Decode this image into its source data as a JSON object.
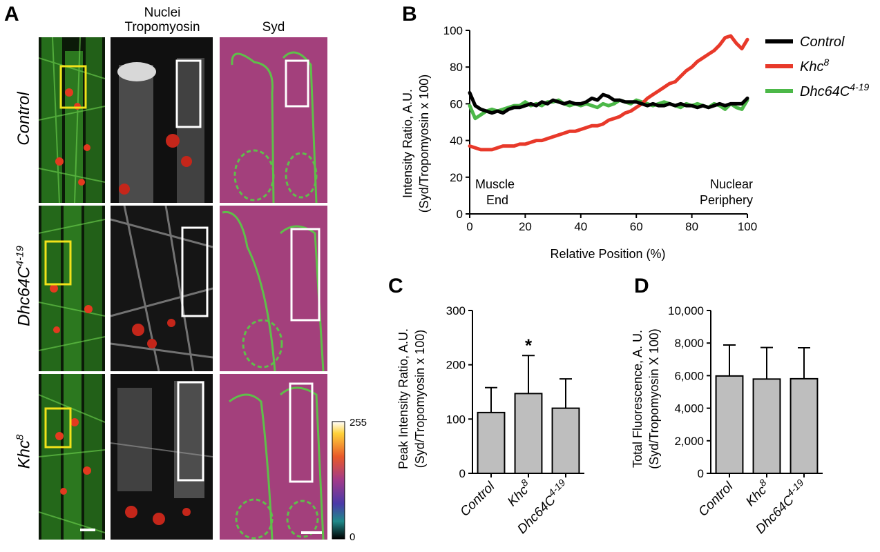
{
  "panel_letters": {
    "a": "A",
    "b": "B",
    "c": "C",
    "d": "D"
  },
  "panel_a": {
    "col_labels": {
      "nuclei": "Nuclei",
      "tropomyosin": "Tropomyosin",
      "syd": "Syd"
    },
    "row_labels": {
      "control": "Control",
      "dhc_base": "Dhc64C",
      "dhc_sup": "4-19",
      "khc_base": "Khc",
      "khc_sup": "8"
    },
    "colorbar": {
      "max": "255",
      "min": "0"
    }
  },
  "chart_data": [
    {
      "type": "line",
      "panel": "B",
      "xlabel": "Relative Position (%)",
      "ylabel_line1": "Intensity Ratio, A.U.",
      "ylabel_line2": "(Syd/Tropomyosin x 100)",
      "xlim": [
        0,
        100
      ],
      "ylim": [
        0,
        100
      ],
      "xticks": [
        "0",
        "20",
        "40",
        "60",
        "80",
        "100"
      ],
      "yticks": [
        "0",
        "20",
        "40",
        "60",
        "80",
        "100"
      ],
      "annotations": {
        "left1": "Muscle",
        "left2": "End",
        "right1": "Nuclear",
        "right2": "Periphery"
      },
      "legend": {
        "placement": "right"
      },
      "series": [
        {
          "name": "Control",
          "name_base": "Control",
          "name_sup": "",
          "color": "#000000",
          "x": [
            0,
            2,
            4,
            6,
            8,
            10,
            12,
            14,
            16,
            18,
            20,
            22,
            24,
            26,
            28,
            30,
            32,
            34,
            36,
            38,
            40,
            42,
            44,
            46,
            48,
            50,
            52,
            54,
            56,
            58,
            60,
            62,
            64,
            66,
            68,
            70,
            72,
            74,
            76,
            78,
            80,
            82,
            84,
            86,
            88,
            90,
            92,
            94,
            96,
            98,
            100
          ],
          "y": [
            66,
            59,
            57,
            56,
            55,
            56,
            55,
            57,
            58,
            58,
            59,
            60,
            59,
            61,
            60,
            62,
            61,
            60,
            61,
            60,
            60,
            61,
            63,
            62,
            65,
            64,
            62,
            62,
            61,
            61,
            61,
            60,
            59,
            60,
            59,
            59,
            60,
            59,
            60,
            59,
            59,
            58,
            59,
            58,
            59,
            60,
            59,
            60,
            60,
            60,
            63
          ]
        },
        {
          "name": "Khc8",
          "name_base": "Khc",
          "name_sup": "8",
          "color": "#e8392a",
          "x": [
            0,
            2,
            4,
            6,
            8,
            10,
            12,
            14,
            16,
            18,
            20,
            22,
            24,
            26,
            28,
            30,
            32,
            34,
            36,
            38,
            40,
            42,
            44,
            46,
            48,
            50,
            52,
            54,
            56,
            58,
            60,
            62,
            64,
            66,
            68,
            70,
            72,
            74,
            76,
            78,
            80,
            82,
            84,
            86,
            88,
            90,
            92,
            94,
            96,
            98,
            100
          ],
          "y": [
            37,
            36,
            35,
            35,
            35,
            36,
            37,
            37,
            37,
            38,
            38,
            39,
            40,
            40,
            41,
            42,
            43,
            44,
            45,
            45,
            46,
            47,
            48,
            48,
            49,
            51,
            52,
            53,
            55,
            56,
            58,
            60,
            63,
            65,
            67,
            69,
            71,
            72,
            75,
            78,
            80,
            83,
            85,
            87,
            89,
            92,
            96,
            97,
            93,
            90,
            95
          ]
        },
        {
          "name": "Dhc64C4-19",
          "name_base": "Dhc64C",
          "name_sup": "4-19",
          "color": "#4cb848",
          "x": [
            0,
            2,
            4,
            6,
            8,
            10,
            12,
            14,
            16,
            18,
            20,
            22,
            24,
            26,
            28,
            30,
            32,
            34,
            36,
            38,
            40,
            42,
            44,
            46,
            48,
            50,
            52,
            54,
            56,
            58,
            60,
            62,
            64,
            66,
            68,
            70,
            72,
            74,
            76,
            78,
            80,
            82,
            84,
            86,
            88,
            90,
            92,
            94,
            96,
            98,
            100
          ],
          "y": [
            59,
            52,
            54,
            56,
            57,
            56,
            57,
            58,
            59,
            59,
            61,
            59,
            60,
            59,
            61,
            61,
            62,
            60,
            59,
            60,
            59,
            60,
            59,
            58,
            60,
            59,
            60,
            62,
            61,
            60,
            62,
            61,
            60,
            59,
            60,
            61,
            60,
            59,
            58,
            60,
            59,
            60,
            59,
            58,
            60,
            59,
            57,
            60,
            58,
            57,
            62
          ]
        }
      ]
    },
    {
      "type": "bar",
      "panel": "C",
      "ylabel_line1": "Peak Intensity Ratio, A.U.",
      "ylabel_line2": "(Syd/Tropomyosin x 100)",
      "ylim": [
        0,
        300
      ],
      "yticks": [
        "0",
        "100",
        "200",
        "300"
      ],
      "categories": [
        {
          "base": "Control",
          "sup": ""
        },
        {
          "base": "Khc",
          "sup": "8"
        },
        {
          "base": "Dhc64C",
          "sup": "4-19"
        }
      ],
      "values": [
        112,
        147,
        120
      ],
      "errors": [
        46,
        70,
        54
      ],
      "significance": [
        "",
        "*",
        ""
      ],
      "bar_color": "#bebebe"
    },
    {
      "type": "bar",
      "panel": "D",
      "ylabel_line1": "Total Fluorescence, A. U.",
      "ylabel_line2": "(Syd/Tropomyosin X 100)",
      "ylim": [
        0,
        10000
      ],
      "yticks": [
        "0",
        "2,000",
        "4,000",
        "6,000",
        "8,000",
        "10,000"
      ],
      "categories": [
        {
          "base": "Control",
          "sup": ""
        },
        {
          "base": "Khc",
          "sup": "8"
        },
        {
          "base": "Dhc64C",
          "sup": "4-19"
        }
      ],
      "values": [
        5980,
        5790,
        5810
      ],
      "errors": [
        1900,
        1940,
        1900
      ],
      "significance": [
        "",
        "",
        ""
      ],
      "bar_color": "#bebebe"
    }
  ]
}
